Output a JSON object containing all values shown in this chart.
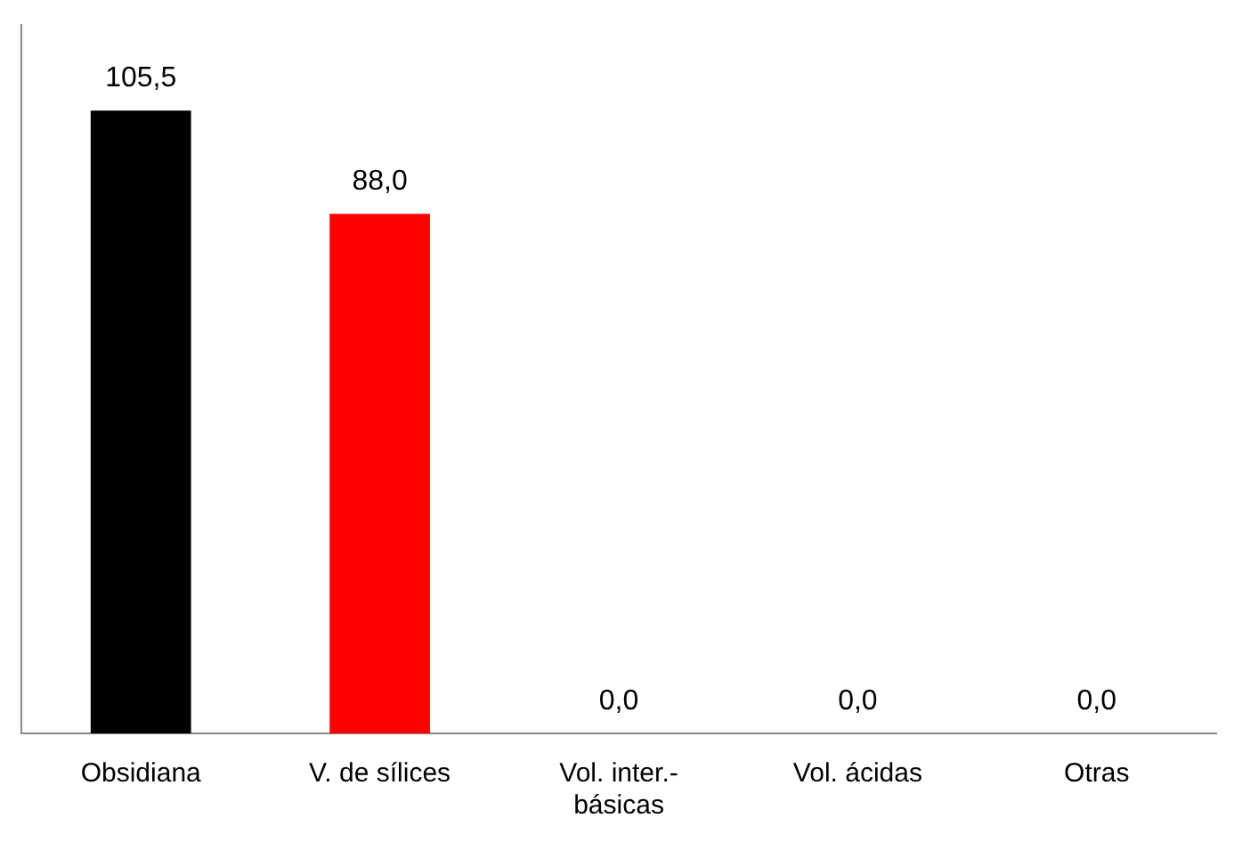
{
  "chart_data": {
    "type": "bar",
    "categories": [
      "Obsidiana",
      "V. de sílices",
      "Vol. inter.-básicas",
      "Vol. ácidas",
      "Otras"
    ],
    "values": [
      105.5,
      88.0,
      0,
      0,
      0
    ],
    "colors": [
      "#000000",
      "#ff0000",
      "#000000",
      "#000000",
      "#000000"
    ],
    "value_labels": [
      "105,5",
      "88,0",
      "0,0",
      "0,0",
      "0,0"
    ],
    "tick_labels": "x",
    "grid": false,
    "legend": false
  }
}
